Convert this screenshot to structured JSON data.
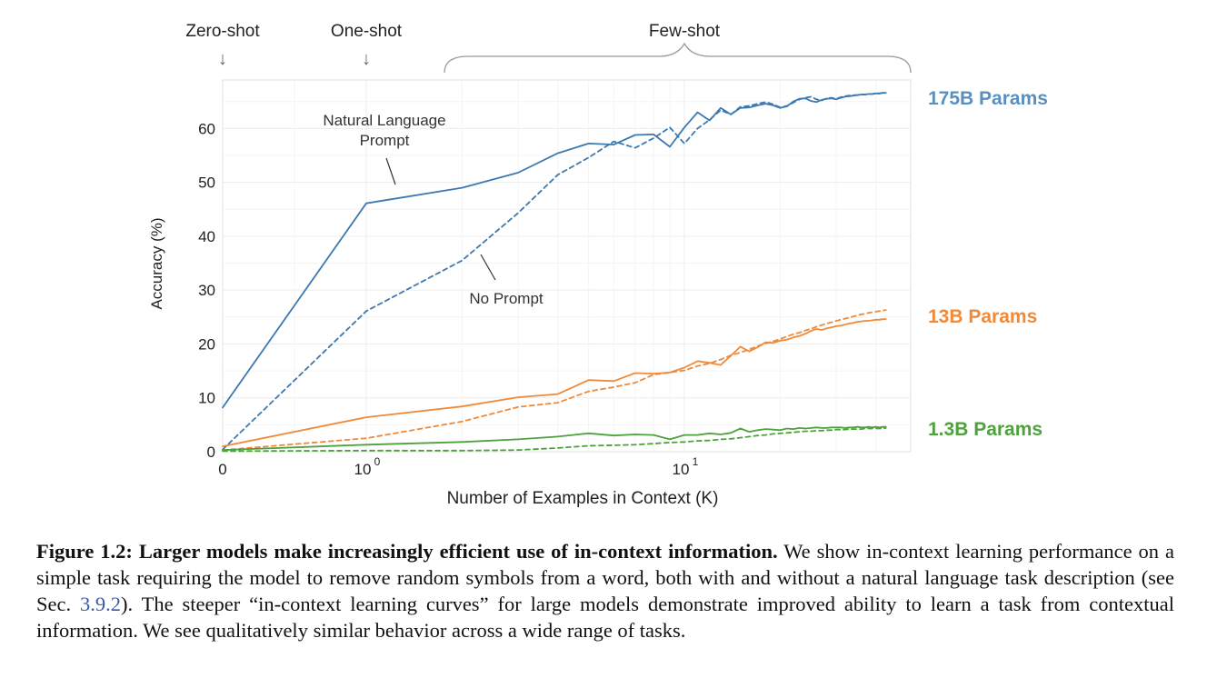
{
  "chart_data": {
    "type": "line",
    "xlabel": "Number of Examples in Context  (K)",
    "ylabel": "Accuracy (%)",
    "xscale": "symlog",
    "ylim": [
      0,
      69
    ],
    "xlim": [
      0,
      43
    ],
    "grid": true,
    "xticks": [
      {
        "value": 0,
        "base": "0",
        "exp": ""
      },
      {
        "value": 1,
        "base": "10",
        "exp": "0"
      },
      {
        "value": 10,
        "base": "10",
        "exp": "1"
      }
    ],
    "yticks": [
      0,
      10,
      20,
      30,
      40,
      50,
      60
    ],
    "regions": [
      {
        "label": "Zero-shot",
        "marker": "arrow",
        "x": 0
      },
      {
        "label": "One-shot",
        "marker": "arrow",
        "x": 1
      },
      {
        "label": "Few-shot",
        "marker": "brace",
        "x_from": 1.6,
        "x_to": 43
      }
    ],
    "annotations": [
      {
        "lines": [
          "Natural Language",
          "Prompt"
        ],
        "points_to": "Natural Language Prompt"
      },
      {
        "lines": [
          "No Prompt"
        ],
        "points_to": "No Prompt"
      }
    ],
    "model_labels": [
      {
        "text": "175B Params",
        "color": "#5b8fbf",
        "y": 66.5
      },
      {
        "text": "13B Params",
        "color": "#ef8a3a",
        "y": 25.5
      },
      {
        "text": "1.3B Params",
        "color": "#4ea23c",
        "y": 4.3
      }
    ],
    "x": [
      0,
      1,
      2,
      3,
      4,
      5,
      6,
      7,
      8,
      9,
      10,
      11,
      12,
      13,
      14,
      15,
      16,
      17,
      18,
      19,
      20,
      21,
      22,
      23,
      24,
      25,
      26,
      27,
      28,
      29,
      30,
      31,
      32,
      33,
      34,
      35,
      36,
      37,
      38,
      39,
      40,
      41,
      42,
      43
    ],
    "series": [
      {
        "model": "175B Params",
        "prompt": "Natural Language Prompt",
        "style": "solid",
        "color": "#3d79b0",
        "values": [
          8.2,
          46.1,
          49,
          51.8,
          55.4,
          57.2,
          57,
          58.8,
          58.9,
          56.6,
          60.2,
          63,
          61.5,
          63.8,
          62.6,
          63.8,
          63.9,
          64.3,
          64.6,
          64.3,
          63.8,
          64.1,
          65,
          65.5,
          65.6,
          65.1,
          64.9,
          65.3,
          65.5,
          65.6,
          65.4,
          65.7,
          65.9,
          66,
          66.1,
          66.2,
          66.3,
          66.3,
          66.4,
          66.4,
          66.5,
          66.5,
          66.6,
          66.6
        ]
      },
      {
        "model": "175B Params",
        "prompt": "No Prompt",
        "style": "dashed",
        "color": "#3d79b0",
        "values": [
          0.4,
          26.1,
          35.5,
          44.3,
          51.4,
          54.6,
          57.6,
          56.4,
          58.2,
          60.2,
          57.2,
          60,
          61.6,
          63.4,
          62.6,
          64,
          64.2,
          64.6,
          64.9,
          64.5,
          63.9,
          64.2,
          64.8,
          65.4,
          65.7,
          65.9,
          65.4,
          65.2,
          65.6,
          65.7,
          65.5,
          65.8,
          66,
          66.1,
          66.2,
          66.2,
          66.3,
          66.3,
          66.4,
          66.4,
          66.5,
          66.5,
          66.6,
          66.6
        ]
      },
      {
        "model": "13B Params",
        "prompt": "Natural Language Prompt",
        "style": "solid",
        "color": "#ef8a3a",
        "values": [
          1,
          6.4,
          8.4,
          10.1,
          10.7,
          13.3,
          13.1,
          14.6,
          14.5,
          14.7,
          15.6,
          16.8,
          16.5,
          16.1,
          17.8,
          19.5,
          18.6,
          19.4,
          20.3,
          20.2,
          20.6,
          20.8,
          21.2,
          21.5,
          21.9,
          22.4,
          22.8,
          22.6,
          22.9,
          23.1,
          23.3,
          23.4,
          23.6,
          23.8,
          23.9,
          24.1,
          24.2,
          24.3,
          24.3,
          24.4,
          24.5,
          24.5,
          24.6,
          24.6
        ]
      },
      {
        "model": "13B Params",
        "prompt": "No Prompt",
        "style": "dashed",
        "color": "#ef8a3a",
        "values": [
          0.3,
          2.5,
          5.6,
          8.3,
          9.1,
          11.2,
          12,
          12.8,
          14.3,
          14.7,
          15.1,
          15.9,
          16.4,
          17.1,
          17.9,
          18.4,
          19,
          19.6,
          20.1,
          20.5,
          20.9,
          21.4,
          21.8,
          22.1,
          22.5,
          22.8,
          23.2,
          23.5,
          23.8,
          24,
          24.3,
          24.5,
          24.7,
          24.9,
          25.1,
          25.3,
          25.5,
          25.6,
          25.8,
          25.9,
          26,
          26.1,
          26.2,
          26.3
        ]
      },
      {
        "model": "1.3B Params",
        "prompt": "Natural Language Prompt",
        "style": "solid",
        "color": "#4ea23c",
        "values": [
          0.3,
          1.3,
          1.8,
          2.3,
          2.8,
          3.4,
          3,
          3.2,
          3.1,
          2.3,
          3.1,
          3.1,
          3.4,
          3.2,
          3.5,
          4.3,
          3.7,
          4,
          4.2,
          4.1,
          4,
          4.3,
          4.2,
          4.4,
          4.3,
          4.4,
          4.5,
          4.4,
          4.4,
          4.5,
          4.5,
          4.5,
          4.4,
          4.5,
          4.5,
          4.6,
          4.5,
          4.5,
          4.6,
          4.5,
          4.6,
          4.5,
          4.6,
          4.6
        ]
      },
      {
        "model": "1.3B Params",
        "prompt": "No Prompt",
        "style": "dashed",
        "color": "#4ea23c",
        "values": [
          0.1,
          0.2,
          0.2,
          0.3,
          0.7,
          1.1,
          1.2,
          1.3,
          1.5,
          1.7,
          1.8,
          2,
          2.1,
          2.3,
          2.4,
          2.6,
          2.8,
          3,
          3.1,
          3.3,
          3.4,
          3.5,
          3.6,
          3.7,
          3.8,
          3.8,
          3.9,
          3.9,
          4,
          4,
          4.1,
          4.1,
          4.1,
          4.2,
          4.2,
          4.2,
          4.2,
          4.3,
          4.3,
          4.3,
          4.3,
          4.3,
          4.3,
          4.4
        ]
      }
    ]
  },
  "caption": {
    "bold": "Figure 1.2: Larger models make increasingly efficient use of in-context information.",
    "text_before_ref": " We show in-context learning performance on a simple task requiring the model to remove random symbols from a word, both with and without a natural language task description (see Sec. ",
    "ref": "3.9.2",
    "text_after_ref": "). The steeper “in-context learning curves” for large models demonstrate improved ability to learn a task from contextual information. We see qualitatively similar behavior across a wide range of tasks."
  }
}
